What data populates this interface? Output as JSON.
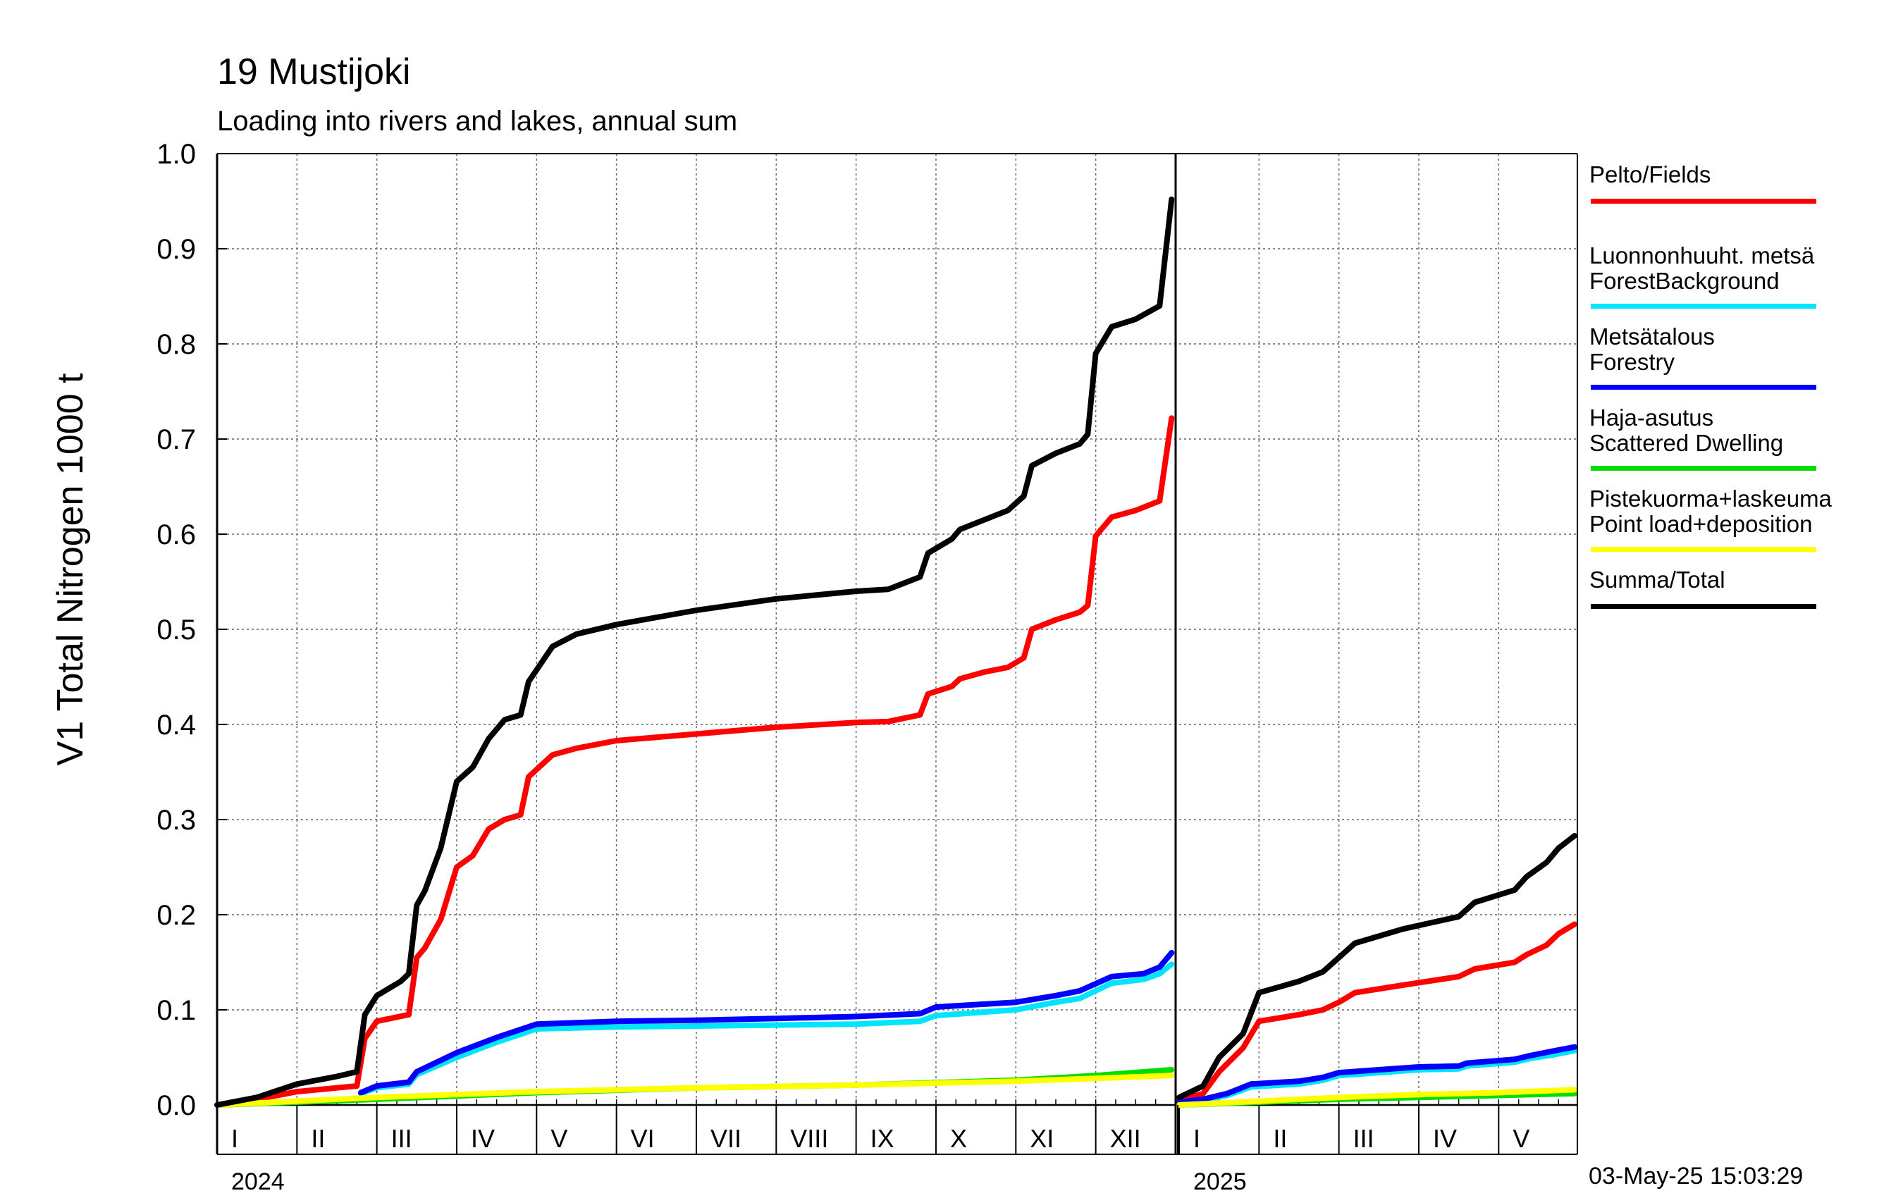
{
  "title": "19 Mustijoki",
  "subtitle": "Loading into rivers and lakes, annual sum",
  "timestamp": "03-May-25 15:03:29",
  "chart_data": {
    "type": "line",
    "ylabel": "V1 Total Nitrogen 1000 t",
    "ylim": [
      0.0,
      1.0
    ],
    "yticks": [
      "0.0",
      "0.1",
      "0.2",
      "0.3",
      "0.4",
      "0.5",
      "0.6",
      "0.7",
      "0.8",
      "0.9",
      "1.0"
    ],
    "grid": true,
    "legend_position": "right",
    "years": [
      {
        "label": "2024",
        "months": [
          "I",
          "II",
          "III",
          "IV",
          "V",
          "VI",
          "VII",
          "VIII",
          "IX",
          "X",
          "XI",
          "XII"
        ],
        "series": [
          {
            "name": "Pelto/Fields",
            "color": "#ff0000",
            "x": [
              0,
              0.5,
              1.0,
              1.5,
              1.75,
              1.85,
              2.0,
              2.4,
              2.5,
              2.6,
              2.8,
              3.0,
              3.2,
              3.4,
              3.6,
              3.8,
              3.9,
              4.2,
              4.5,
              5.0,
              6.0,
              7.0,
              8.0,
              8.4,
              8.8,
              8.9,
              9.2,
              9.3,
              9.6,
              9.9,
              10.1,
              10.2,
              10.5,
              10.8,
              10.9,
              11.0,
              11.2,
              11.5,
              11.8,
              11.95
            ],
            "y": [
              0,
              0.006,
              0.014,
              0.018,
              0.02,
              0.07,
              0.088,
              0.095,
              0.155,
              0.165,
              0.195,
              0.25,
              0.262,
              0.29,
              0.3,
              0.305,
              0.345,
              0.368,
              0.375,
              0.383,
              0.39,
              0.397,
              0.402,
              0.403,
              0.41,
              0.432,
              0.44,
              0.448,
              0.455,
              0.46,
              0.47,
              0.5,
              0.51,
              0.518,
              0.525,
              0.598,
              0.618,
              0.625,
              0.635,
              0.722
            ]
          },
          {
            "name": "Luonnonhuuht. metsä ForestBackground",
            "color": "#00e5ff",
            "x": [
              1.8,
              2.0,
              2.4,
              2.5,
              3.0,
              3.5,
              4.0,
              5.0,
              6.0,
              7.0,
              8.0,
              8.8,
              9.0,
              10.0,
              10.5,
              10.8,
              11.2,
              11.6,
              11.8,
              11.95
            ],
            "y": [
              0.012,
              0.018,
              0.022,
              0.032,
              0.05,
              0.066,
              0.08,
              0.082,
              0.083,
              0.084,
              0.085,
              0.088,
              0.094,
              0.1,
              0.108,
              0.112,
              0.128,
              0.132,
              0.138,
              0.148
            ]
          },
          {
            "name": "Metsätalous Forestry",
            "color": "#0000ff",
            "x": [
              1.8,
              2.0,
              2.4,
              2.5,
              3.0,
              3.5,
              4.0,
              5.0,
              6.0,
              7.0,
              8.0,
              8.8,
              9.0,
              10.0,
              10.5,
              10.8,
              11.2,
              11.6,
              11.8,
              11.95
            ],
            "y": [
              0.013,
              0.02,
              0.024,
              0.035,
              0.055,
              0.071,
              0.085,
              0.088,
              0.089,
              0.091,
              0.093,
              0.096,
              0.103,
              0.108,
              0.115,
              0.12,
              0.135,
              0.138,
              0.145,
              0.16
            ]
          },
          {
            "name": "Haja-asutus Scattered Dwelling",
            "color": "#00dd00",
            "x": [
              0,
              2.0,
              4.0,
              6.0,
              8.0,
              10.0,
              11.0,
              11.95
            ],
            "y": [
              0,
              0.006,
              0.013,
              0.018,
              0.021,
              0.026,
              0.031,
              0.037
            ]
          },
          {
            "name": "Pistekuorma+laskeuma Point load+deposition",
            "color": "#ffff00",
            "x": [
              0,
              2.0,
              4.0,
              6.0,
              8.0,
              10.0,
              11.0,
              11.95
            ],
            "y": [
              0,
              0.008,
              0.014,
              0.018,
              0.021,
              0.025,
              0.028,
              0.031
            ]
          },
          {
            "name": "Summa/Total",
            "color": "#000000",
            "x": [
              0,
              0.5,
              1.0,
              1.5,
              1.75,
              1.85,
              2.0,
              2.3,
              2.4,
              2.5,
              2.6,
              2.8,
              3.0,
              3.2,
              3.4,
              3.6,
              3.8,
              3.9,
              4.2,
              4.5,
              5.0,
              6.0,
              7.0,
              8.0,
              8.4,
              8.8,
              8.9,
              9.2,
              9.3,
              9.6,
              9.9,
              10.1,
              10.2,
              10.5,
              10.8,
              10.9,
              11.0,
              11.2,
              11.5,
              11.8,
              11.95
            ],
            "y": [
              0,
              0.008,
              0.022,
              0.03,
              0.035,
              0.095,
              0.115,
              0.13,
              0.138,
              0.21,
              0.225,
              0.27,
              0.34,
              0.355,
              0.385,
              0.405,
              0.41,
              0.445,
              0.482,
              0.495,
              0.505,
              0.52,
              0.532,
              0.54,
              0.542,
              0.555,
              0.58,
              0.595,
              0.605,
              0.615,
              0.625,
              0.64,
              0.672,
              0.685,
              0.695,
              0.705,
              0.79,
              0.818,
              0.826,
              0.84,
              0.952
            ]
          }
        ]
      },
      {
        "label": "2025",
        "months": [
          "I",
          "II",
          "III",
          "IV",
          "V"
        ],
        "series": [
          {
            "name": "Pelto/Fields",
            "color": "#ff0000",
            "x": [
              0,
              0.3,
              0.5,
              0.8,
              1.0,
              1.5,
              1.8,
              2.0,
              2.2,
              2.8,
              3.5,
              3.7,
              4.2,
              4.35,
              4.6,
              4.75,
              4.95
            ],
            "y": [
              0.005,
              0.012,
              0.035,
              0.06,
              0.088,
              0.095,
              0.1,
              0.108,
              0.118,
              0.126,
              0.135,
              0.143,
              0.15,
              0.158,
              0.168,
              0.18,
              0.19
            ]
          },
          {
            "name": "Luonnonhuuht. metsä ForestBackground",
            "color": "#00e5ff",
            "x": [
              0,
              0.3,
              0.6,
              0.9,
              1.5,
              1.8,
              2.0,
              2.5,
              3.0,
              3.5,
              3.6,
              4.2,
              4.4,
              4.7,
              4.95
            ],
            "y": [
              0.002,
              0.005,
              0.01,
              0.019,
              0.022,
              0.026,
              0.031,
              0.034,
              0.037,
              0.038,
              0.041,
              0.045,
              0.049,
              0.053,
              0.057
            ]
          },
          {
            "name": "Metsätalous Forestry",
            "color": "#0000ff",
            "x": [
              0,
              0.3,
              0.6,
              0.9,
              1.5,
              1.8,
              2.0,
              2.5,
              3.0,
              3.5,
              3.6,
              4.2,
              4.4,
              4.7,
              4.95
            ],
            "y": [
              0.003,
              0.006,
              0.012,
              0.022,
              0.025,
              0.029,
              0.034,
              0.037,
              0.04,
              0.041,
              0.044,
              0.048,
              0.052,
              0.057,
              0.061
            ]
          },
          {
            "name": "Haja-asutus Scattered Dwelling",
            "color": "#00dd00",
            "x": [
              0,
              1.0,
              2.0,
              3.0,
              4.0,
              4.95
            ],
            "y": [
              0,
              0.003,
              0.006,
              0.008,
              0.01,
              0.012
            ]
          },
          {
            "name": "Pistekuorma+laskeuma Point load+deposition",
            "color": "#ffff00",
            "x": [
              0,
              1.0,
              2.0,
              3.0,
              4.0,
              4.95
            ],
            "y": [
              0,
              0.004,
              0.008,
              0.011,
              0.013,
              0.016
            ]
          },
          {
            "name": "Summa/Total",
            "color": "#000000",
            "x": [
              0,
              0.3,
              0.5,
              0.8,
              1.0,
              1.5,
              1.8,
              2.0,
              2.2,
              2.8,
              3.5,
              3.7,
              4.2,
              4.35,
              4.6,
              4.75,
              4.95
            ],
            "y": [
              0.008,
              0.02,
              0.05,
              0.075,
              0.118,
              0.13,
              0.14,
              0.155,
              0.17,
              0.185,
              0.198,
              0.213,
              0.226,
              0.24,
              0.255,
              0.27,
              0.283
            ]
          }
        ]
      }
    ]
  },
  "legend": [
    {
      "line1": "Pelto/Fields",
      "line2": "",
      "color": "#ff0000"
    },
    {
      "line1": "Luonnonhuuht. metsä",
      "line2": "ForestBackground",
      "color": "#00e5ff"
    },
    {
      "line1": "Metsätalous",
      "line2": "Forestry",
      "color": "#0000ff"
    },
    {
      "line1": "Haja-asutus",
      "line2": "Scattered Dwelling",
      "color": "#00dd00"
    },
    {
      "line1": "Pistekuorma+laskeuma",
      "line2": "Point load+deposition",
      "color": "#ffff00"
    },
    {
      "line1": "Summa/Total",
      "line2": "",
      "color": "#000000"
    }
  ]
}
